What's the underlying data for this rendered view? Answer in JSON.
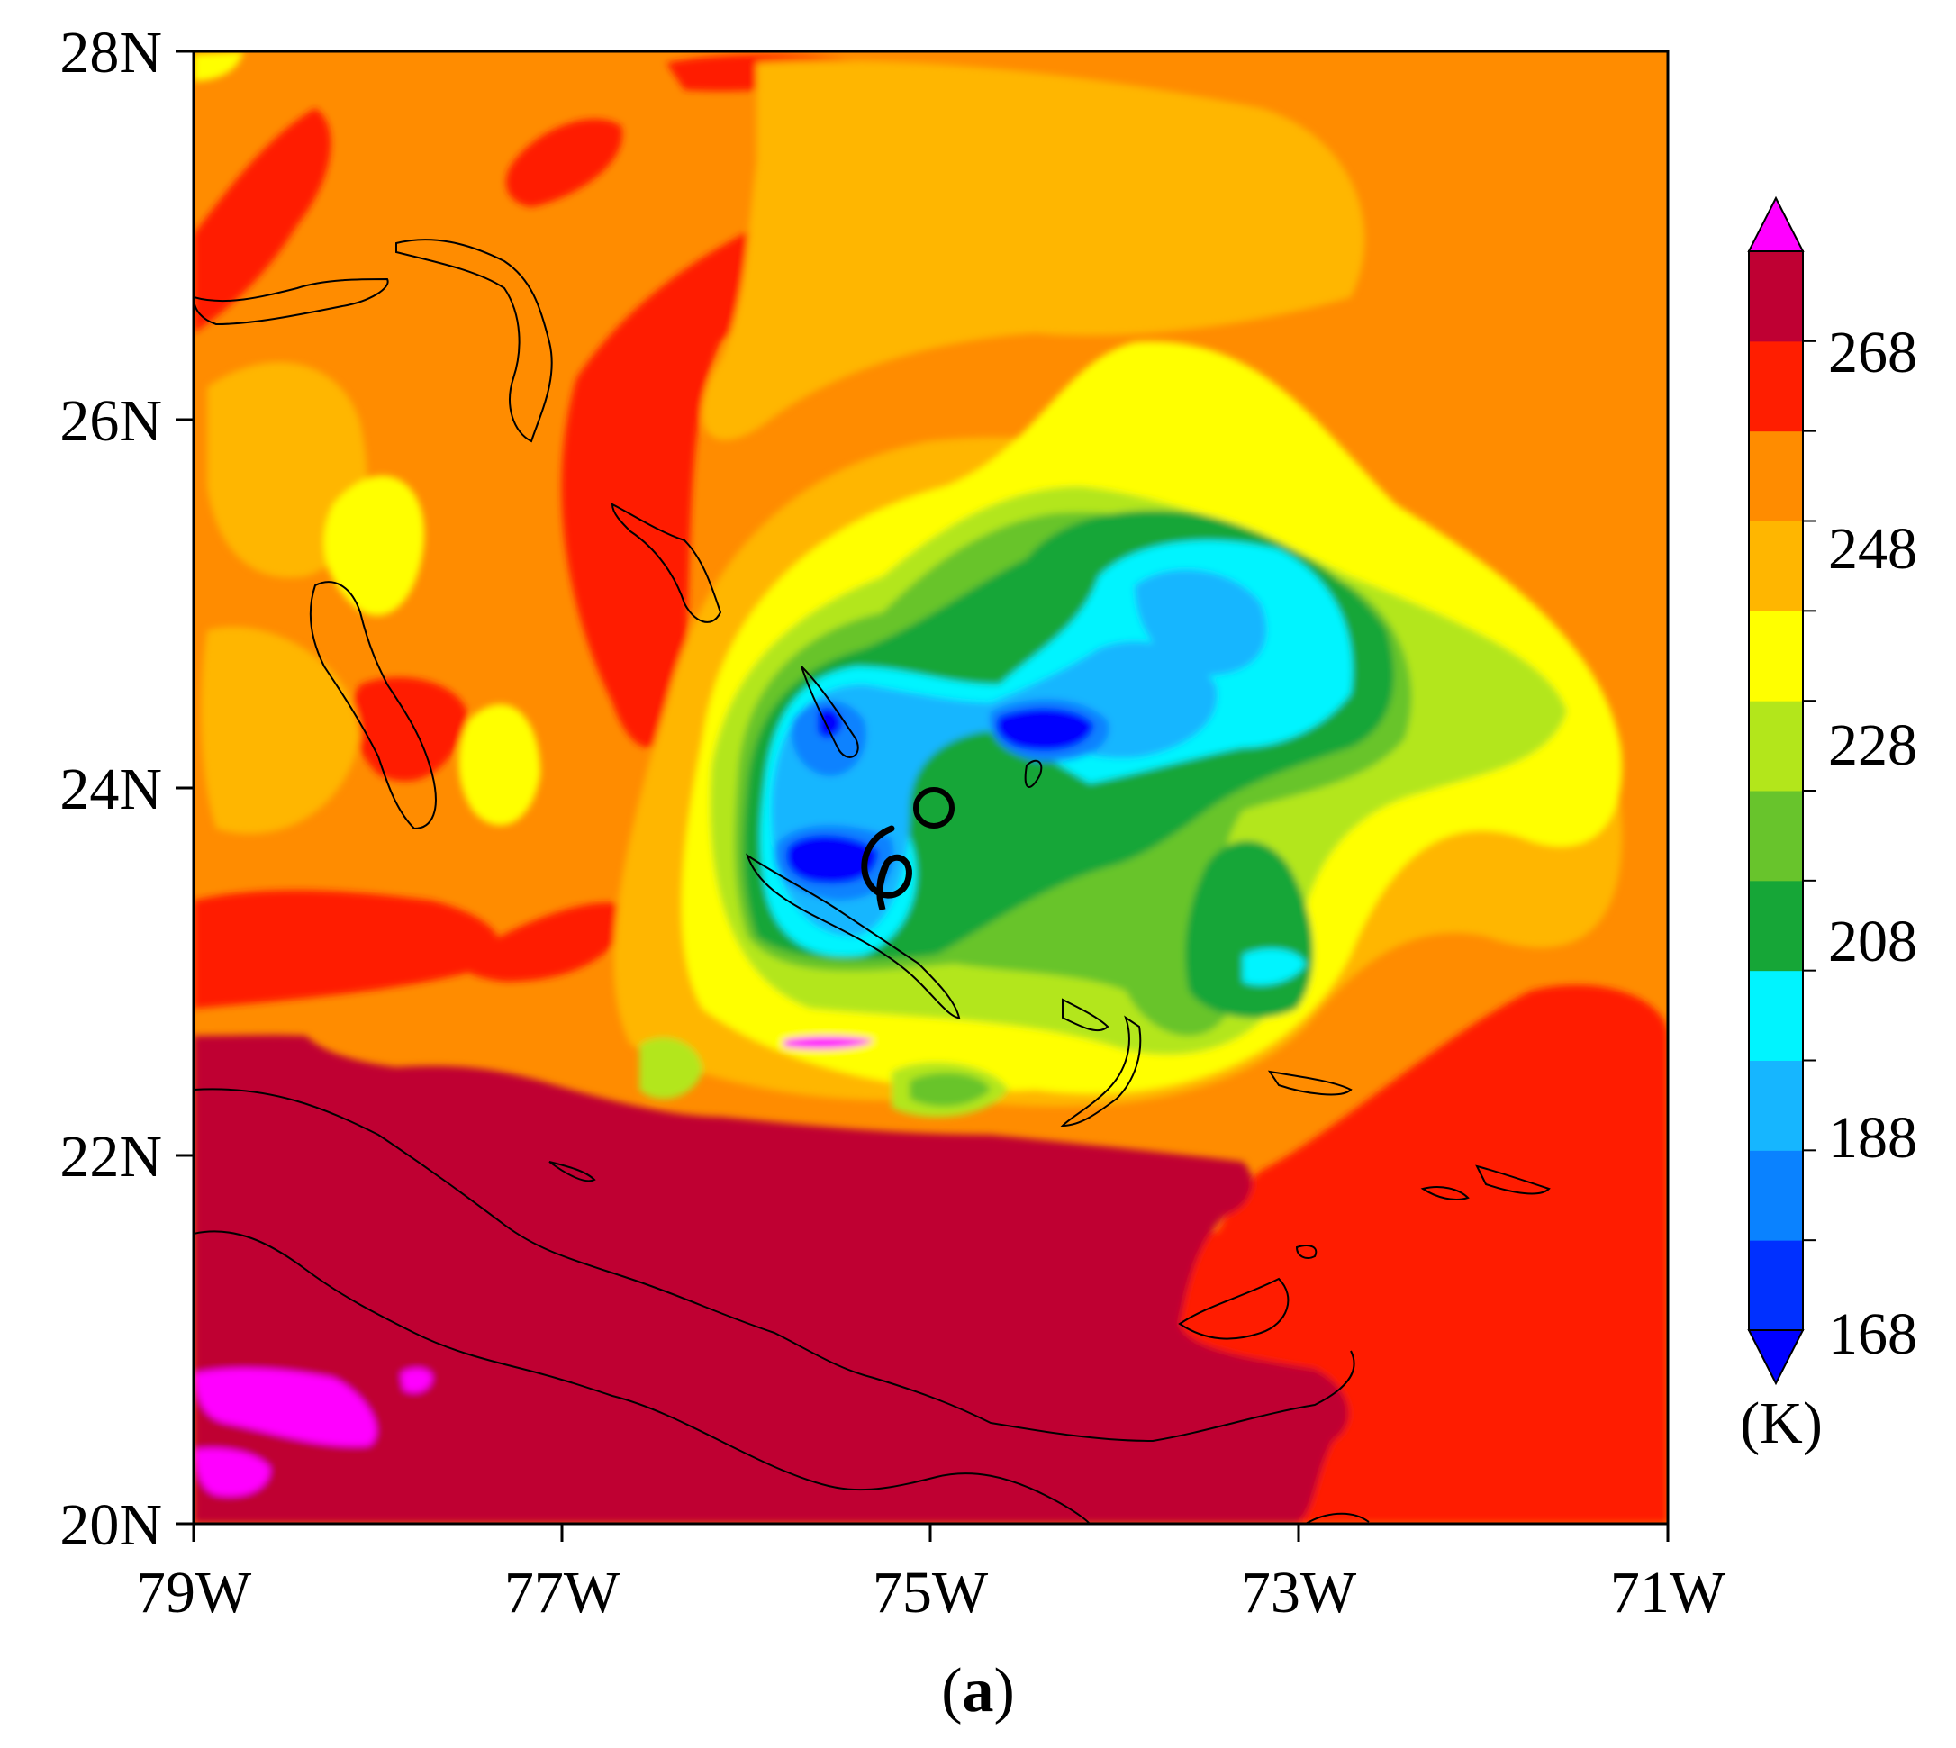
{
  "figure": {
    "panel_label_open": "(",
    "panel_label_letter": "a",
    "panel_label_close": ")"
  },
  "map": {
    "lon_range": [
      -79,
      -71
    ],
    "lat_range": [
      20,
      28
    ],
    "x_ticks": [
      "79W",
      "77W",
      "75W",
      "73W",
      "71W"
    ],
    "y_ticks": [
      "28N",
      "26N",
      "24N",
      "22N",
      "20N"
    ],
    "variable_unit": "(K)",
    "symbols": [
      {
        "name": "hurricane-symbol",
        "lon": -75.3,
        "lat": 23.6
      },
      {
        "name": "observed-center-circle",
        "lon": -75.0,
        "lat": 23.9
      }
    ]
  },
  "colorbar": {
    "labels": [
      "268",
      "248",
      "228",
      "208",
      "188",
      "168"
    ],
    "unit": "(K)",
    "colors": [
      "#0030ff",
      "#0a82ff",
      "#16b6ff",
      "#00f4ff",
      "#16a637",
      "#68c42c",
      "#b3e61b",
      "#ffff00",
      "#ffb600",
      "#ff8c00",
      "#ff1e00",
      "#bf0033"
    ],
    "over_color": "#ff00ff",
    "under_color": "#0000ff"
  },
  "colors": {
    "background_field": "#ff8c00",
    "cold_cloud_core": "#0000ff",
    "warm_land": "#bf0033",
    "very_warm": "#ff00ff"
  }
}
